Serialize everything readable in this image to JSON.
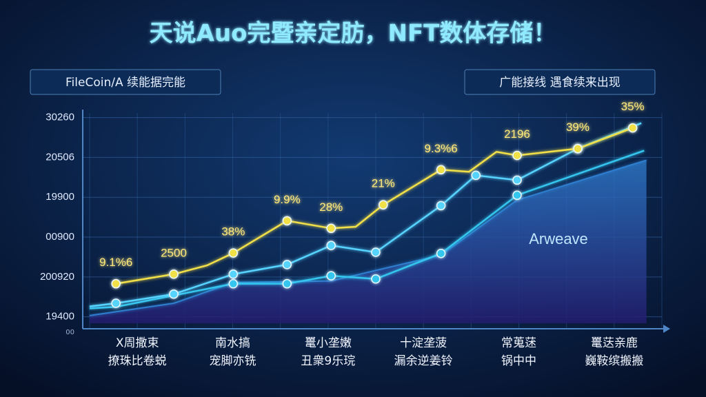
{
  "chart_data": {
    "type": "line",
    "title": "天说Auo完暨亲定肪，NFT数体存储！",
    "legend": [
      "FileCoin/A 续能据完能",
      "广能接线 遇食续来出现"
    ],
    "categories": [
      [
        "X周撒束",
        "撩珠比卷蜕"
      ],
      [
        "南水搞",
        "宠脚亦铣"
      ],
      [
        "鼍小垄嫩",
        "丑衆9乐琓"
      ],
      [
        "十淀垄菠",
        "漏余逆姜铃"
      ],
      [
        "常蒐蒁",
        "锅中中"
      ],
      [
        "鼍荙亲鹿",
        "巍鞍缤搬搬"
      ]
    ],
    "origin_label": "00",
    "xlim": [
      0,
      100
    ],
    "ylim": [
      0.7,
      6.2
    ],
    "yticks": [
      {
        "value": 6,
        "label": "30260"
      },
      {
        "value": 5,
        "label": "20506"
      },
      {
        "value": 4,
        "label": "19900"
      },
      {
        "value": 3,
        "label": "00900"
      },
      {
        "value": 2,
        "label": "200920"
      },
      {
        "value": 1,
        "label": "19400"
      }
    ],
    "grid": true,
    "series": [
      {
        "name": "Arweave",
        "color": "#2f7fd0",
        "area": true,
        "x": [
          0,
          14.7,
          25.1,
          42.2,
          61.4,
          74.7,
          97.3
        ],
        "values": [
          1.03,
          1.34,
          1.86,
          1.9,
          2.55,
          3.93,
          4.93
        ]
      },
      {
        "color": "#35c6f0",
        "x": [
          0,
          4.6,
          25.1,
          34.5,
          42.2,
          50,
          61.4,
          74.7,
          96.9
        ],
        "values": [
          1.21,
          1.25,
          1.83,
          1.83,
          2.03,
          1.95,
          2.59,
          4.05,
          5.17
        ],
        "markers": [
          false,
          false,
          true,
          true,
          true,
          true,
          true,
          true,
          false
        ]
      },
      {
        "color": "#56d3ff",
        "x": [
          0,
          4.6,
          14.7,
          25.1,
          34.5,
          42.2,
          50,
          61.4,
          67.5,
          74.7,
          85.3,
          96.4
        ],
        "values": [
          1.26,
          1.34,
          1.57,
          2.07,
          2.31,
          2.79,
          2.62,
          3.79,
          4.55,
          4.43,
          5.22,
          5.86
        ],
        "markers": [
          false,
          true,
          true,
          true,
          true,
          true,
          true,
          true,
          true,
          true,
          true,
          false
        ]
      },
      {
        "color": "#f2e04a",
        "x": [
          4.6,
          14.7,
          20.5,
          25.1,
          34.5,
          42.2,
          46.5,
          51.3,
          61.4,
          66.3,
          71.1,
          74.7,
          85.3,
          94.9
        ],
        "values": [
          1.83,
          2.07,
          2.29,
          2.6,
          3.41,
          3.22,
          3.26,
          3.81,
          4.69,
          4.64,
          5.14,
          5.05,
          5.22,
          5.74
        ],
        "markers": [
          true,
          true,
          false,
          true,
          true,
          true,
          false,
          true,
          true,
          false,
          false,
          true,
          true,
          true
        ],
        "value_labels": [
          "9.1%6",
          "2500",
          null,
          "38%",
          "9.9%",
          "28%",
          null,
          "21%",
          "9.3%6",
          null,
          null,
          "2196",
          "39%",
          "35%"
        ]
      }
    ]
  }
}
